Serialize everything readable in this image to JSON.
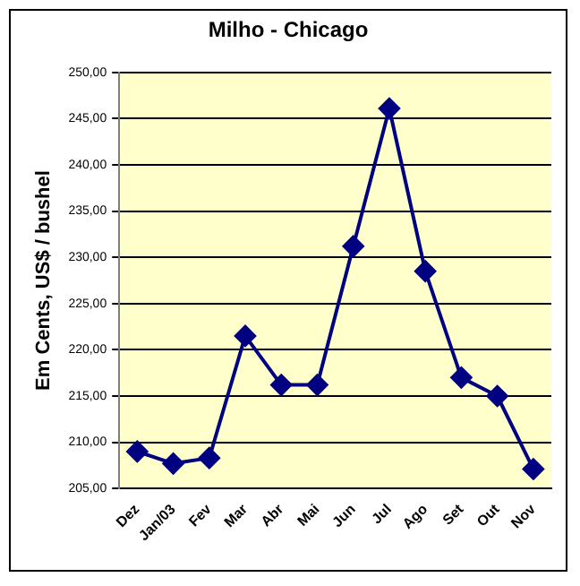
{
  "chart_data": {
    "type": "line",
    "title": "Milho - Chicago",
    "ylabel": "Em Cents, US$ / bushel",
    "categories": [
      "Dez",
      "Jan/03",
      "Fev",
      "Mar",
      "Abr",
      "Mai",
      "Jun",
      "Jul",
      "Ago",
      "Set",
      "Out",
      "Nov"
    ],
    "series": [
      {
        "color": "#000080",
        "values": [
          209.0,
          207.7,
          208.3,
          221.5,
          216.2,
          216.2,
          231.2,
          246.1,
          228.5,
          217.0,
          215.0,
          207.1
        ]
      }
    ],
    "ylim": [
      205,
      250
    ],
    "yticks": [
      {
        "value": 205,
        "label": "205,00"
      },
      {
        "value": 210,
        "label": "210,00"
      },
      {
        "value": 215,
        "label": "215,00"
      },
      {
        "value": 220,
        "label": "220,00"
      },
      {
        "value": 225,
        "label": "225,00"
      },
      {
        "value": 230,
        "label": "230,00"
      },
      {
        "value": 235,
        "label": "235,00"
      },
      {
        "value": 240,
        "label": "240,00"
      },
      {
        "value": 245,
        "label": "245,00"
      },
      {
        "value": 250,
        "label": "250,00"
      }
    ],
    "grid": "y",
    "legend": false,
    "marker": "diamond",
    "line_style": "solid"
  }
}
